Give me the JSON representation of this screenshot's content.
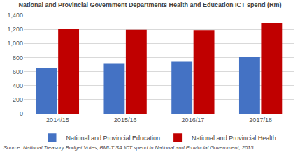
{
  "chart_data": {
    "type": "bar",
    "title": "National and Provincial Government Departments Health and Education ICT spend (Rm)",
    "categories": [
      "2014/15",
      "2015/16",
      "2016/17",
      "2017/18"
    ],
    "series": [
      {
        "name": "National and Provincial Education",
        "color": "#4472c4",
        "values": [
          655,
          710,
          740,
          805
        ]
      },
      {
        "name": "National and Provincial Health",
        "color": "#c00000",
        "values": [
          1205,
          1195,
          1190,
          1290
        ]
      }
    ],
    "ylim": [
      0,
      1400
    ],
    "yticks": [
      0,
      200,
      400,
      600,
      800,
      {
        "value": 1000,
        "label": "1,000"
      },
      {
        "value": 1200,
        "label": "1,200"
      },
      {
        "value": 1400,
        "label": "1,400"
      }
    ],
    "grid": true,
    "legend": "bottom",
    "annotations": [
      "Source: National Treasury Budget Votes, BMI-T SA ICT spend in National and Provincial Government, 2015"
    ]
  }
}
